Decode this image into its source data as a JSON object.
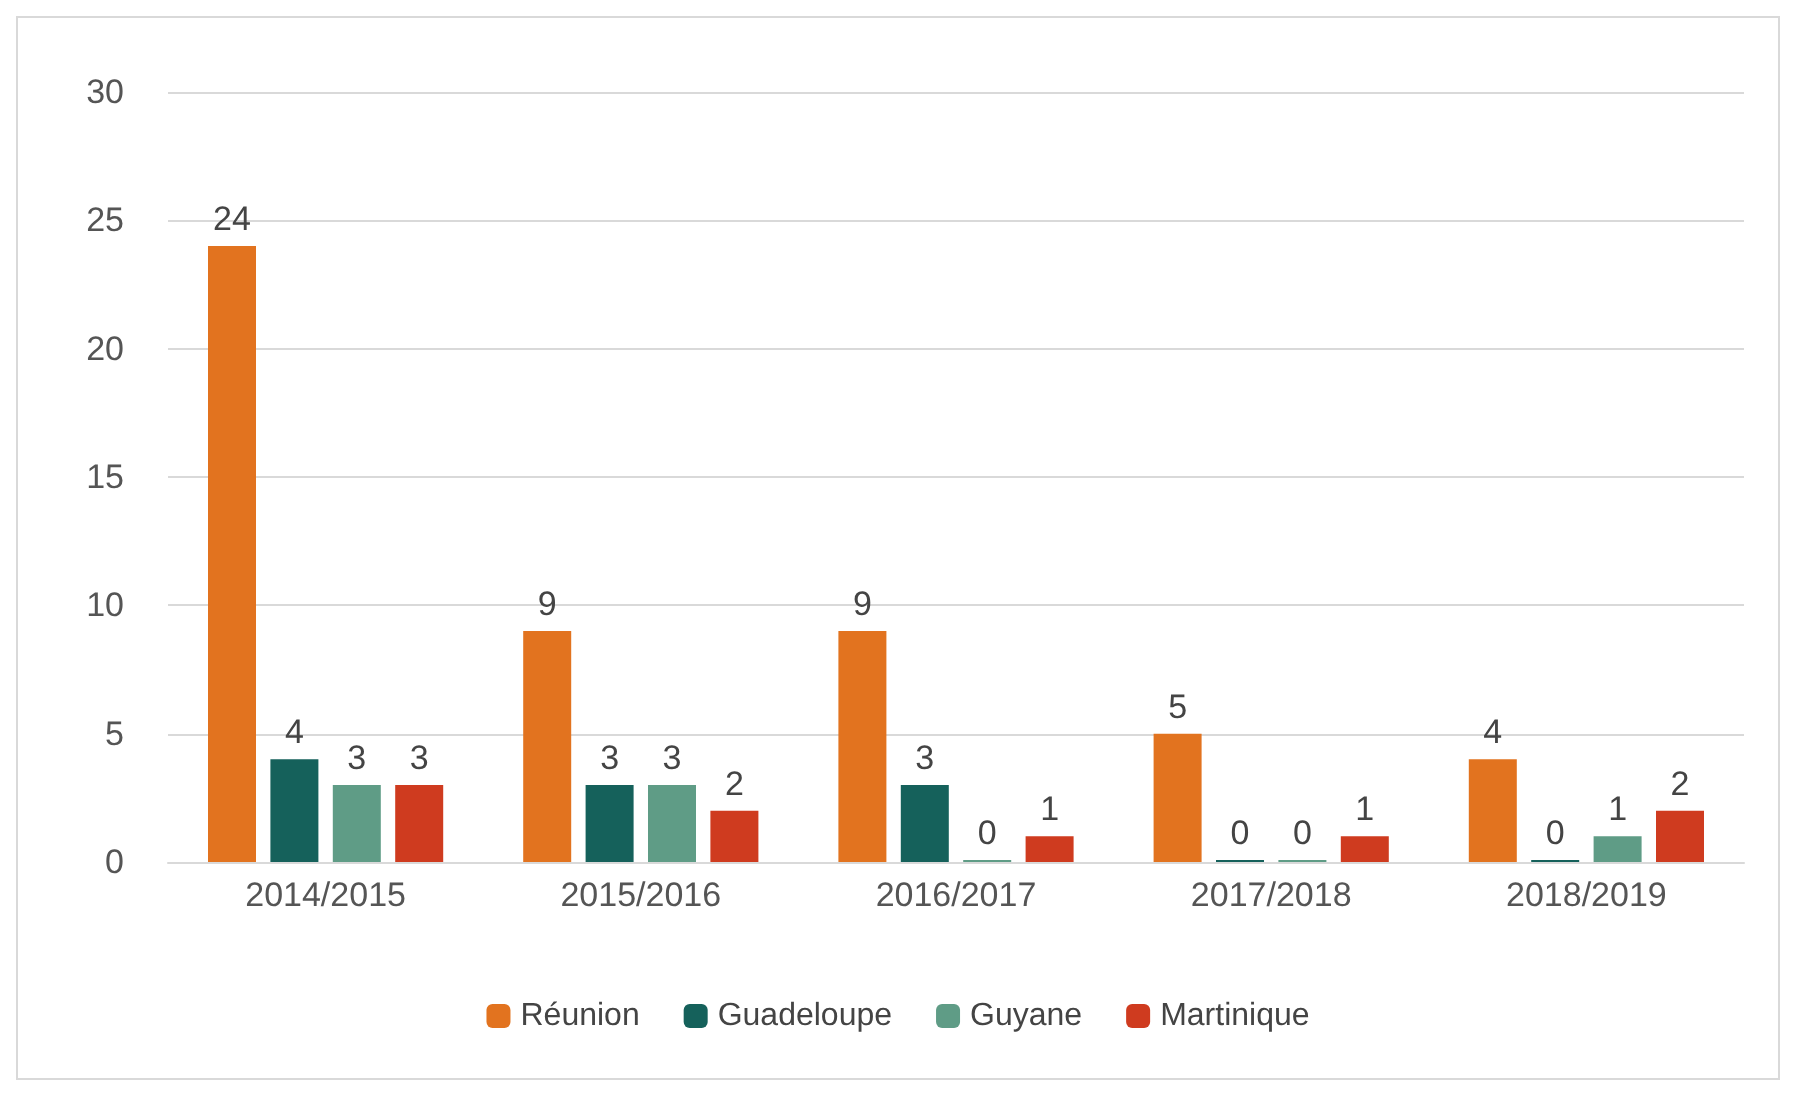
{
  "chart_data": {
    "type": "bar",
    "categories": [
      "2014/2015",
      "2015/2016",
      "2016/2017",
      "2017/2018",
      "2018/2019"
    ],
    "series": [
      {
        "name": "Réunion",
        "color": "#e2731f",
        "values": [
          24,
          9,
          9,
          5,
          4
        ]
      },
      {
        "name": "Guadeloupe",
        "color": "#15615b",
        "values": [
          4,
          3,
          3,
          0,
          0
        ]
      },
      {
        "name": "Guyane",
        "color": "#5f9c86",
        "values": [
          3,
          3,
          0,
          0,
          1
        ]
      },
      {
        "name": "Martinique",
        "color": "#cf3b1f",
        "values": [
          3,
          2,
          1,
          1,
          2
        ]
      }
    ],
    "ylim": [
      0,
      30
    ],
    "yticks": [
      0,
      5,
      10,
      15,
      20,
      25,
      30
    ],
    "grid": "y",
    "legend": "bottom",
    "data_labels": true
  }
}
